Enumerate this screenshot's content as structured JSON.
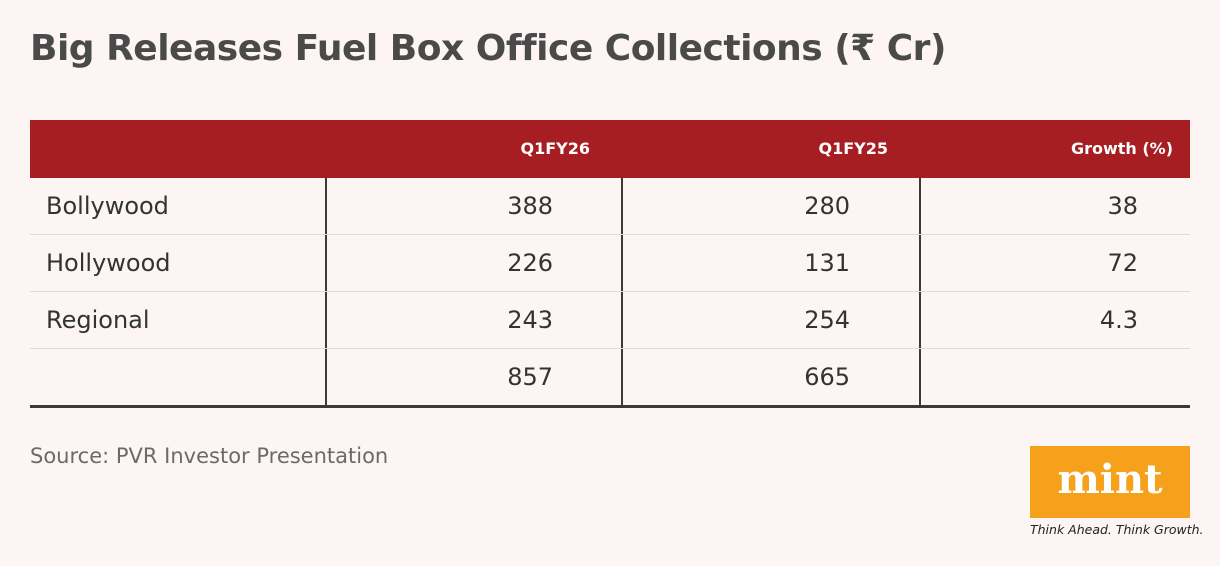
{
  "title": "Big Releases Fuel Box Office Collections (₹ Cr)",
  "table": {
    "columns": [
      "Q1FY26",
      "Q1FY25",
      "Growth (%)"
    ],
    "rows": [
      {
        "label": "Bollywood",
        "cells": [
          388,
          280,
          38
        ]
      },
      {
        "label": "Hollywood",
        "cells": [
          226,
          131,
          72
        ]
      },
      {
        "label": "Regional",
        "cells": [
          243,
          254,
          4.3
        ]
      },
      {
        "cells": [
          857,
          665
        ]
      }
    ]
  },
  "footer": {
    "source": "Source: PVR Investor Presentation",
    "logo": "mint",
    "tagline": "Think Ahead. Think Growth."
  }
}
